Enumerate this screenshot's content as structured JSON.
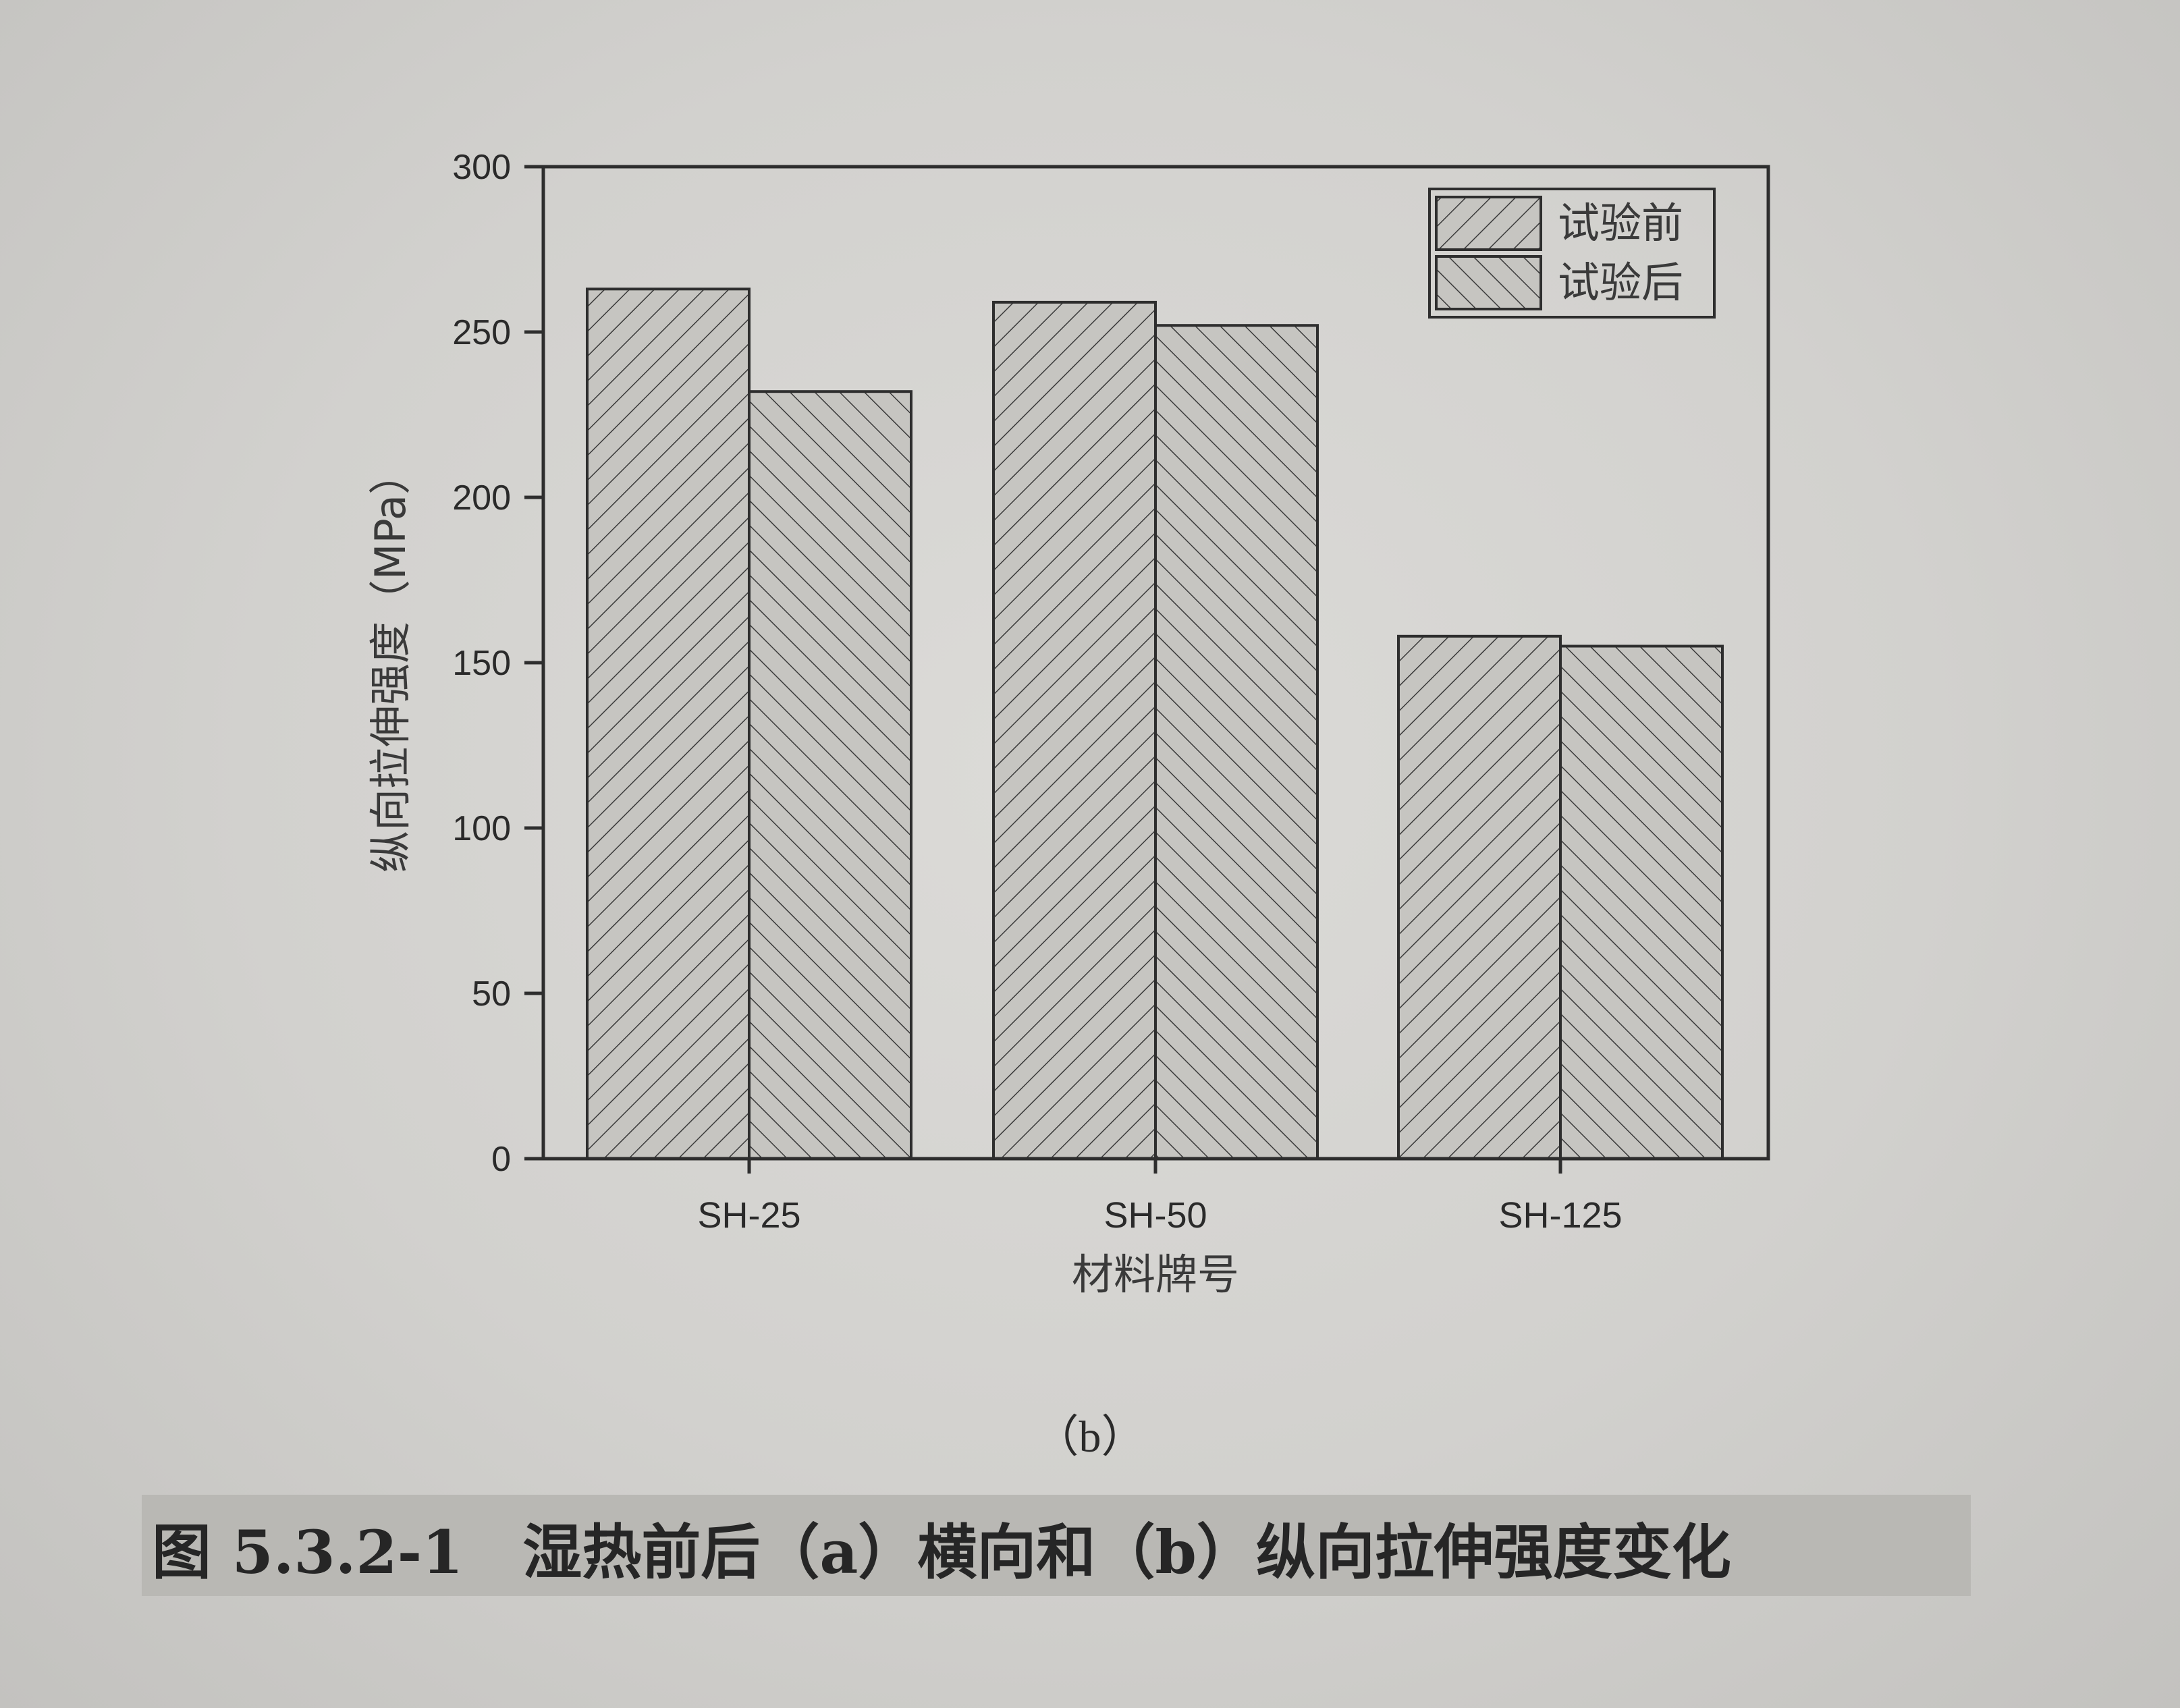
{
  "chart_data": {
    "type": "bar",
    "categories": [
      "SH-25",
      "SH-50",
      "SH-125"
    ],
    "series": [
      {
        "name": "试验前",
        "values": [
          263,
          259,
          158
        ],
        "pattern": "forward-hatch"
      },
      {
        "name": "试验后",
        "values": [
          232,
          252,
          155
        ],
        "pattern": "back-hatch"
      }
    ],
    "ylim": [
      0,
      300
    ],
    "yticks": [
      0,
      50,
      100,
      150,
      200,
      250,
      300
    ],
    "xlabel": "材料牌号",
    "ylabel": "纵向拉伸强度（MPa）",
    "legend_position": "top-right",
    "grid": false,
    "colors": {
      "fill": "#c6c5c1",
      "stroke": "#2e2e2e",
      "hatch": "#3a3a3a"
    }
  },
  "subcaption": "（b）",
  "caption": "图 5.3.2-1　湿热前后（a）横向和（b）纵向拉伸强度变化"
}
